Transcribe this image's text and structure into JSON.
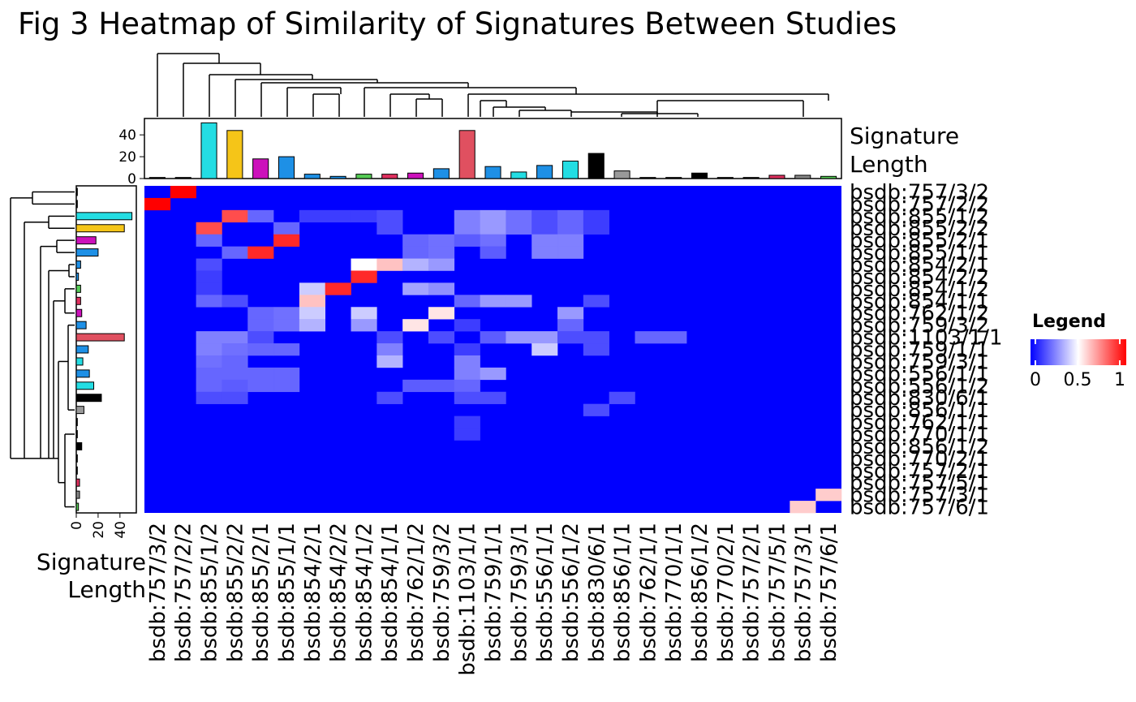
{
  "figure": {
    "title": "Fig 3 Heatmap of Similarity of Signatures Between Studies"
  },
  "chart_data": {
    "type": "heatmap",
    "title": "Fig 3 Heatmap of Similarity of Signatures Between Studies",
    "labels": [
      "bsdb:757/3/2",
      "bsdb:757/2/2",
      "bsdb:855/1/2",
      "bsdb:855/2/2",
      "bsdb:855/2/1",
      "bsdb:855/1/1",
      "bsdb:854/2/1",
      "bsdb:854/2/2",
      "bsdb:854/1/2",
      "bsdb:854/1/1",
      "bsdb:762/1/2",
      "bsdb:759/3/2",
      "bsdb:1103/1/1",
      "bsdb:759/1/1",
      "bsdb:759/3/1",
      "bsdb:556/1/1",
      "bsdb:556/1/2",
      "bsdb:830/6/1",
      "bsdb:856/1/1",
      "bsdb:762/1/1",
      "bsdb:770/1/1",
      "bsdb:856/1/2",
      "bsdb:770/2/1",
      "bsdb:757/2/1",
      "bsdb:757/5/1",
      "bsdb:757/3/1",
      "bsdb:757/6/1"
    ],
    "annotation_title": "Signature\nLength",
    "annotation_axis_ticks": [
      0,
      20,
      40
    ],
    "signature_length": [
      1,
      1,
      51,
      44,
      18,
      20,
      4,
      2,
      4,
      4,
      5,
      9,
      44,
      11,
      6,
      12,
      16,
      23,
      7,
      1,
      1,
      5,
      1,
      1,
      3,
      3,
      2
    ],
    "bar_colors": [
      "#000000",
      "#000000",
      "#23dde3",
      "#f5c518",
      "#cc11bb",
      "#1e90e6",
      "#1e90e6",
      "#1e90e6",
      "#55cc55",
      "#e0305f",
      "#cc11bb",
      "#1e90e6",
      "#e05060",
      "#1e90e6",
      "#23dde3",
      "#1e90e6",
      "#23dde3",
      "#000000",
      "#999999",
      "#000000",
      "#000000",
      "#000000",
      "#000000",
      "#000000",
      "#e0305f",
      "#888888",
      "#55cc55"
    ],
    "cells": [
      {
        "row": 0,
        "col": 1,
        "v": 1.0
      },
      {
        "row": 1,
        "col": 0,
        "v": 1.0
      },
      {
        "row": 2,
        "col": 3,
        "v": 0.85
      },
      {
        "row": 2,
        "col": 4,
        "v": 0.2
      },
      {
        "row": 2,
        "col": 6,
        "v": 0.12
      },
      {
        "row": 2,
        "col": 7,
        "v": 0.12
      },
      {
        "row": 2,
        "col": 8,
        "v": 0.12
      },
      {
        "row": 2,
        "col": 9,
        "v": 0.15
      },
      {
        "row": 2,
        "col": 12,
        "v": 0.25
      },
      {
        "row": 2,
        "col": 13,
        "v": 0.3
      },
      {
        "row": 2,
        "col": 14,
        "v": 0.22
      },
      {
        "row": 2,
        "col": 15,
        "v": 0.15
      },
      {
        "row": 2,
        "col": 16,
        "v": 0.2
      },
      {
        "row": 2,
        "col": 17,
        "v": 0.12
      },
      {
        "row": 3,
        "col": 2,
        "v": 0.85
      },
      {
        "row": 3,
        "col": 5,
        "v": 0.2
      },
      {
        "row": 3,
        "col": 9,
        "v": 0.15
      },
      {
        "row": 3,
        "col": 12,
        "v": 0.25
      },
      {
        "row": 3,
        "col": 13,
        "v": 0.3
      },
      {
        "row": 3,
        "col": 14,
        "v": 0.22
      },
      {
        "row": 3,
        "col": 15,
        "v": 0.15
      },
      {
        "row": 3,
        "col": 16,
        "v": 0.2
      },
      {
        "row": 3,
        "col": 17,
        "v": 0.12
      },
      {
        "row": 4,
        "col": 2,
        "v": 0.2
      },
      {
        "row": 4,
        "col": 5,
        "v": 0.92
      },
      {
        "row": 4,
        "col": 10,
        "v": 0.2
      },
      {
        "row": 4,
        "col": 11,
        "v": 0.22
      },
      {
        "row": 4,
        "col": 12,
        "v": 0.18
      },
      {
        "row": 4,
        "col": 13,
        "v": 0.22
      },
      {
        "row": 4,
        "col": 15,
        "v": 0.25
      },
      {
        "row": 4,
        "col": 16,
        "v": 0.25
      },
      {
        "row": 5,
        "col": 3,
        "v": 0.2
      },
      {
        "row": 5,
        "col": 4,
        "v": 0.92
      },
      {
        "row": 5,
        "col": 10,
        "v": 0.2
      },
      {
        "row": 5,
        "col": 11,
        "v": 0.22
      },
      {
        "row": 5,
        "col": 13,
        "v": 0.18
      },
      {
        "row": 5,
        "col": 15,
        "v": 0.25
      },
      {
        "row": 5,
        "col": 16,
        "v": 0.25
      },
      {
        "row": 6,
        "col": 2,
        "v": 0.15
      },
      {
        "row": 6,
        "col": 8,
        "v": 0.5
      },
      {
        "row": 6,
        "col": 9,
        "v": 0.62
      },
      {
        "row": 6,
        "col": 10,
        "v": 0.35
      },
      {
        "row": 6,
        "col": 11,
        "v": 0.3
      },
      {
        "row": 7,
        "col": 2,
        "v": 0.12
      },
      {
        "row": 7,
        "col": 8,
        "v": 0.92
      },
      {
        "row": 8,
        "col": 2,
        "v": 0.12
      },
      {
        "row": 8,
        "col": 6,
        "v": 0.4
      },
      {
        "row": 8,
        "col": 7,
        "v": 0.92
      },
      {
        "row": 8,
        "col": 10,
        "v": 0.32
      },
      {
        "row": 8,
        "col": 11,
        "v": 0.28
      },
      {
        "row": 9,
        "col": 2,
        "v": 0.2
      },
      {
        "row": 9,
        "col": 3,
        "v": 0.15
      },
      {
        "row": 9,
        "col": 6,
        "v": 0.62
      },
      {
        "row": 9,
        "col": 12,
        "v": 0.2
      },
      {
        "row": 9,
        "col": 13,
        "v": 0.3
      },
      {
        "row": 9,
        "col": 14,
        "v": 0.3
      },
      {
        "row": 9,
        "col": 17,
        "v": 0.15
      },
      {
        "row": 10,
        "col": 4,
        "v": 0.2
      },
      {
        "row": 10,
        "col": 5,
        "v": 0.22
      },
      {
        "row": 10,
        "col": 6,
        "v": 0.4
      },
      {
        "row": 10,
        "col": 8,
        "v": 0.4
      },
      {
        "row": 10,
        "col": 11,
        "v": 0.55
      },
      {
        "row": 10,
        "col": 16,
        "v": 0.3
      },
      {
        "row": 11,
        "col": 4,
        "v": 0.2
      },
      {
        "row": 11,
        "col": 5,
        "v": 0.22
      },
      {
        "row": 11,
        "col": 6,
        "v": 0.35
      },
      {
        "row": 11,
        "col": 8,
        "v": 0.3
      },
      {
        "row": 11,
        "col": 10,
        "v": 0.55
      },
      {
        "row": 11,
        "col": 12,
        "v": 0.12
      },
      {
        "row": 11,
        "col": 16,
        "v": 0.2
      },
      {
        "row": 12,
        "col": 2,
        "v": 0.25
      },
      {
        "row": 12,
        "col": 3,
        "v": 0.25
      },
      {
        "row": 12,
        "col": 4,
        "v": 0.15
      },
      {
        "row": 12,
        "col": 9,
        "v": 0.15
      },
      {
        "row": 12,
        "col": 11,
        "v": 0.15
      },
      {
        "row": 12,
        "col": 13,
        "v": 0.18
      },
      {
        "row": 12,
        "col": 14,
        "v": 0.3
      },
      {
        "row": 12,
        "col": 15,
        "v": 0.3
      },
      {
        "row": 12,
        "col": 16,
        "v": 0.15
      },
      {
        "row": 12,
        "col": 17,
        "v": 0.15
      },
      {
        "row": 12,
        "col": 19,
        "v": 0.2
      },
      {
        "row": 12,
        "col": 20,
        "v": 0.2
      },
      {
        "row": 13,
        "col": 2,
        "v": 0.25
      },
      {
        "row": 13,
        "col": 3,
        "v": 0.22
      },
      {
        "row": 13,
        "col": 4,
        "v": 0.2
      },
      {
        "row": 13,
        "col": 5,
        "v": 0.2
      },
      {
        "row": 13,
        "col": 9,
        "v": 0.25
      },
      {
        "row": 13,
        "col": 12,
        "v": 0.12
      },
      {
        "row": 13,
        "col": 15,
        "v": 0.4
      },
      {
        "row": 13,
        "col": 17,
        "v": 0.15
      },
      {
        "row": 14,
        "col": 2,
        "v": 0.22
      },
      {
        "row": 14,
        "col": 3,
        "v": 0.2
      },
      {
        "row": 14,
        "col": 9,
        "v": 0.35
      },
      {
        "row": 14,
        "col": 12,
        "v": 0.25
      },
      {
        "row": 15,
        "col": 2,
        "v": 0.2
      },
      {
        "row": 15,
        "col": 3,
        "v": 0.2
      },
      {
        "row": 15,
        "col": 4,
        "v": 0.2
      },
      {
        "row": 15,
        "col": 5,
        "v": 0.2
      },
      {
        "row": 15,
        "col": 12,
        "v": 0.25
      },
      {
        "row": 15,
        "col": 13,
        "v": 0.3
      },
      {
        "row": 16,
        "col": 2,
        "v": 0.2
      },
      {
        "row": 16,
        "col": 3,
        "v": 0.18
      },
      {
        "row": 16,
        "col": 4,
        "v": 0.2
      },
      {
        "row": 16,
        "col": 5,
        "v": 0.2
      },
      {
        "row": 16,
        "col": 10,
        "v": 0.18
      },
      {
        "row": 16,
        "col": 11,
        "v": 0.18
      },
      {
        "row": 16,
        "col": 12,
        "v": 0.2
      },
      {
        "row": 17,
        "col": 2,
        "v": 0.15
      },
      {
        "row": 17,
        "col": 3,
        "v": 0.15
      },
      {
        "row": 17,
        "col": 9,
        "v": 0.15
      },
      {
        "row": 17,
        "col": 12,
        "v": 0.15
      },
      {
        "row": 17,
        "col": 13,
        "v": 0.15
      },
      {
        "row": 17,
        "col": 18,
        "v": 0.15
      },
      {
        "row": 18,
        "col": 17,
        "v": 0.15
      },
      {
        "row": 19,
        "col": 12,
        "v": 0.12
      },
      {
        "row": 20,
        "col": 12,
        "v": 0.12
      },
      {
        "row": 25,
        "col": 26,
        "v": 0.6
      },
      {
        "row": 26,
        "col": 25,
        "v": 0.6
      }
    ],
    "color_scale": {
      "min": 0,
      "mid": 0.5,
      "max": 1,
      "low": "#0000ff",
      "midColor": "#ffffff",
      "high": "#ff0000"
    },
    "legend": {
      "title": "Legend",
      "ticks": [
        "0",
        "0.5",
        "1"
      ],
      "placement": "right"
    }
  }
}
